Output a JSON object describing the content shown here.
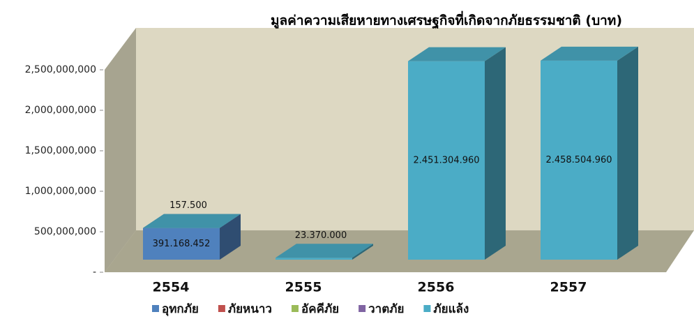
{
  "chart_data": {
    "type": "bar3d_stacked",
    "title": "มูลค่าความเสียหายทางเศรษฐกิจที่เกิดจากภัยธรรมชาติ (บาท)",
    "categories": [
      "2554",
      "2555",
      "2556",
      "2557"
    ],
    "series": [
      {
        "name": "อุทกภัย",
        "color": "#4f81bd",
        "values": [
          391168452,
          null,
          null,
          null
        ],
        "value_labels": [
          "391.168.452",
          null,
          null,
          null
        ]
      },
      {
        "name": "ภัยหนาว",
        "color": "#c0504d",
        "values": [
          null,
          null,
          null,
          null
        ]
      },
      {
        "name": "อัคคีภัย",
        "color": "#9bbb59",
        "values": [
          null,
          null,
          null,
          null
        ]
      },
      {
        "name": "วาตภัย",
        "color": "#8064a2",
        "values": [
          null,
          null,
          null,
          null
        ]
      },
      {
        "name": "ภัยแล้ง",
        "color": "#4bacc6",
        "values": [
          157500,
          23370000,
          2451304960,
          2458504960
        ],
        "value_labels": [
          "157.500",
          "23.370.000",
          "2.451.304.960",
          "2.458.504.960"
        ]
      }
    ],
    "ylim": [
      0,
      3000000000
    ],
    "yticks": [
      {
        "value": 0,
        "label": "-"
      },
      {
        "value": 500000000,
        "label": "500,000,000"
      },
      {
        "value": 1000000000,
        "label": "1,000,000,000"
      },
      {
        "value": 1500000000,
        "label": "1,500,000,000"
      },
      {
        "value": 2000000000,
        "label": "2,000,000,000"
      },
      {
        "value": 2500000000,
        "label": "2,500,000,000"
      }
    ],
    "legend": "bottom"
  }
}
